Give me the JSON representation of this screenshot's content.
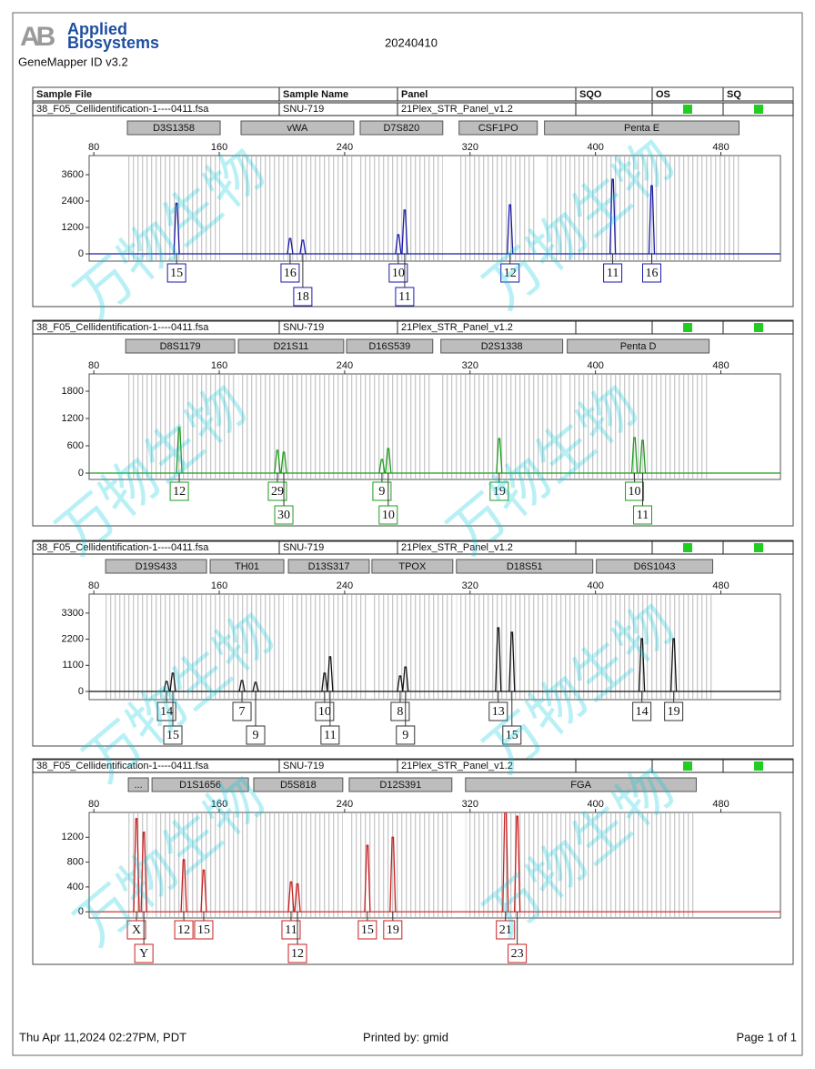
{
  "header": {
    "logo_mark": "AB",
    "logo_text": [
      "Applied",
      "Biosystems"
    ],
    "software": "GeneMapper ID v3.2",
    "run_date": "20240410"
  },
  "table_header": [
    "Sample File",
    "Sample Name",
    "Panel",
    "SQO",
    "OS",
    "SQ"
  ],
  "watermark": "万物生物",
  "chart_data": [
    {
      "type": "electropherogram",
      "sample_file": "38_F05_Cellidentification-1----0411.fsa",
      "sample_name": "SNU-719",
      "panel": "21Plex_STR_Panel_v1.2",
      "color": "#1a1aa8",
      "markers": [
        {
          "name": "D3S1358",
          "range": [
            101.4,
            160.6
          ]
        },
        {
          "name": "vWA",
          "range": [
            173.9,
            245.8
          ]
        },
        {
          "name": "D7S820",
          "range": [
            249.9,
            302.6
          ]
        },
        {
          "name": "CSF1PO",
          "range": [
            313,
            362.9
          ]
        },
        {
          "name": "Penta E",
          "range": [
            367.5,
            491.6
          ]
        }
      ],
      "x": [
        132.8,
        205.2,
        213.3,
        274.2,
        278.3,
        345.5,
        411,
        435.9
      ],
      "values": [
        2300,
        700,
        620,
        870,
        1990,
        2230,
        3390,
        3100
      ],
      "allele_labels": [
        "15",
        "16",
        "18",
        "10",
        "11",
        "12",
        "11",
        "16"
      ],
      "xlim": [
        77,
        518
      ],
      "xticks": [
        80,
        160,
        240,
        320,
        400,
        480
      ],
      "ylim": [
        -330,
        4470
      ],
      "yticks": [
        0,
        1200,
        2400,
        3600
      ]
    },
    {
      "type": "electropherogram",
      "sample_file": "38_F05_Cellidentification-1----0411.fsa",
      "sample_name": "SNU-719",
      "panel": "21Plex_STR_Panel_v1.2",
      "color": "#1f9a1f",
      "markers": [
        {
          "name": "D8S1179",
          "range": [
            100.3,
            169.9
          ]
        },
        {
          "name": "D21S11",
          "range": [
            172.2,
            239.4
          ]
        },
        {
          "name": "D16S539",
          "range": [
            241.2,
            296.2
          ]
        },
        {
          "name": "D2S1338",
          "range": [
            301.4,
            379.1
          ]
        },
        {
          "name": "Penta D",
          "range": [
            382,
            472.5
          ]
        }
      ],
      "x": [
        134.5,
        197.1,
        201.2,
        263.8,
        267.8,
        338.6,
        424.9,
        430.1
      ],
      "values": [
        1000,
        500,
        460,
        300,
        540,
        760,
        780,
        720
      ],
      "allele_labels": [
        "12",
        "29",
        "30",
        "9",
        "10",
        "19",
        "10",
        "11"
      ],
      "xlim": [
        77,
        518
      ],
      "xticks": [
        80,
        160,
        240,
        320,
        400,
        480
      ],
      "ylim": [
        -140,
        2180
      ],
      "yticks": [
        0,
        600,
        1200,
        1800
      ]
    },
    {
      "type": "electropherogram",
      "sample_file": "38_F05_Cellidentification-1----0411.fsa",
      "sample_name": "SNU-719",
      "panel": "21Plex_STR_Panel_v1.2",
      "color": "#111111",
      "markers": [
        {
          "name": "D19S433",
          "range": [
            87.5,
            151.9
          ]
        },
        {
          "name": "TH01",
          "range": [
            154.2,
            201.2
          ]
        },
        {
          "name": "D13S317",
          "range": [
            204.1,
            255.7
          ]
        },
        {
          "name": "TPOX",
          "range": [
            257.4,
            309
          ]
        },
        {
          "name": "D18S51",
          "range": [
            311.3,
            398.3
          ]
        },
        {
          "name": "D6S1043",
          "range": [
            400.6,
            474.8
          ]
        }
      ],
      "x": [
        126.4,
        130.4,
        174.5,
        183.2,
        227.2,
        230.7,
        275.4,
        278.8,
        338,
        346.7,
        429.6,
        449.9
      ],
      "values": [
        420,
        770,
        460,
        380,
        770,
        1460,
        650,
        1030,
        2680,
        2490,
        2220,
        2220
      ],
      "allele_labels": [
        "14",
        "15",
        "7",
        "9",
        "10",
        "11",
        "8",
        "9",
        "13",
        "15",
        "14",
        "19"
      ],
      "xlim": [
        77,
        518
      ],
      "xticks": [
        80,
        160,
        240,
        320,
        400,
        480
      ],
      "ylim": [
        -345,
        4100
      ],
      "yticks": [
        0,
        1100,
        2200,
        3300
      ]
    },
    {
      "type": "electropherogram",
      "sample_file": "38_F05_Cellidentification-1----0411.fsa",
      "sample_name": "SNU-719",
      "panel": "21Plex_STR_Panel_v1.2",
      "color": "#c81e1e",
      "markers": [
        {
          "name": "...",
          "range": [
            102,
            114.8
          ]
        },
        {
          "name": "D1S1656",
          "range": [
            117.1,
            178.6
          ]
        },
        {
          "name": "D5S818",
          "range": [
            182,
            238.8
          ]
        },
        {
          "name": "D12S391",
          "range": [
            242.9,
            308.4
          ]
        },
        {
          "name": "FGA",
          "range": [
            317.1,
            464.3
          ]
        }
      ],
      "x": [
        107.2,
        111.9,
        137.4,
        150.1,
        205.8,
        209.9,
        254.5,
        270.7,
        342.6,
        350.1
      ],
      "values": [
        1500,
        1280,
        840,
        670,
        480,
        450,
        1070,
        1200,
        1750,
        1540
      ],
      "allele_labels": [
        "X",
        "Y",
        "12",
        "15",
        "11",
        "12",
        "15",
        "19",
        "21",
        "23"
      ],
      "xlim": [
        77,
        518
      ],
      "xticks": [
        80,
        160,
        240,
        320,
        400,
        480
      ],
      "ylim": [
        -100,
        1600
      ],
      "yticks": [
        0,
        400,
        800,
        1200
      ]
    }
  ],
  "footer": {
    "printed_at": "Thu Apr 11,2024 02:27PM, PDT",
    "printed_by": "Printed by: gmid",
    "page": "Page 1 of 1"
  }
}
